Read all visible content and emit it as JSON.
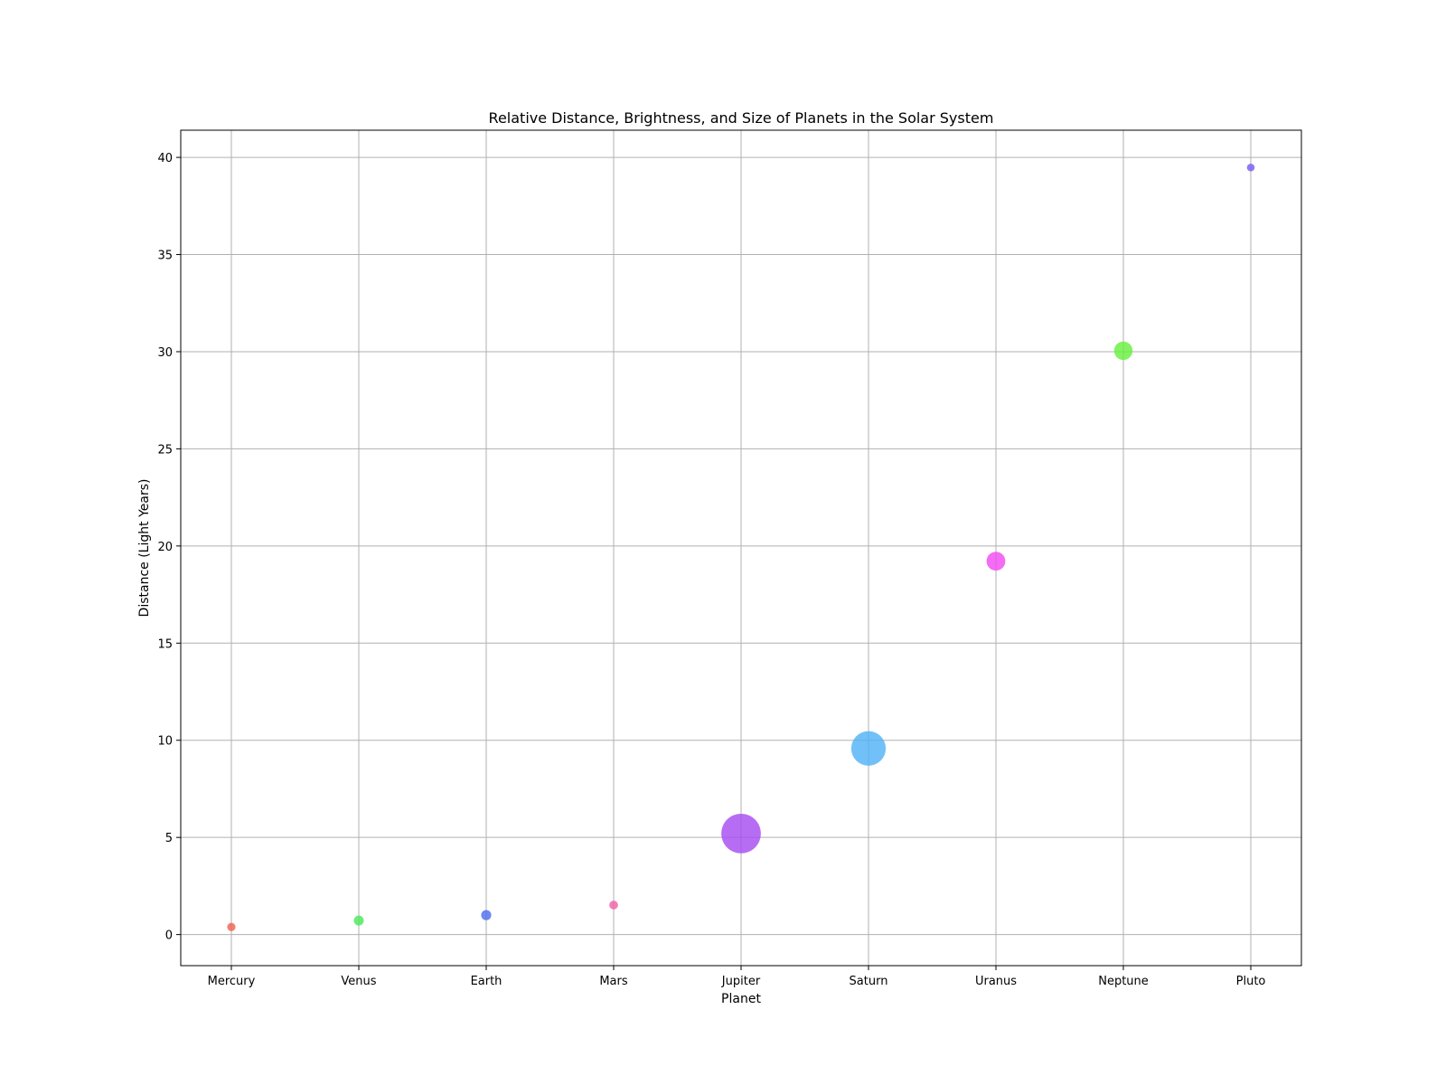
{
  "chart_data": {
    "type": "scatter",
    "title": "Relative Distance, Brightness, and Size of Planets in the Solar System",
    "xlabel": "Planet",
    "ylabel": "Distance (Light Years)",
    "categories": [
      "Mercury",
      "Venus",
      "Earth",
      "Mars",
      "Jupiter",
      "Saturn",
      "Uranus",
      "Neptune",
      "Pluto"
    ],
    "values": [
      0.39,
      0.72,
      1.0,
      1.52,
      5.2,
      9.58,
      19.22,
      30.05,
      39.48
    ],
    "relative_size": [
      0.38,
      0.95,
      1.0,
      0.53,
      11.2,
      9.45,
      4.0,
      3.88,
      0.18
    ],
    "colors": [
      "#f0634f",
      "#4ce85a",
      "#4e6ff0",
      "#f062a8",
      "#a64df0",
      "#52b3f7",
      "#f24cf2",
      "#68f040",
      "#7a5cf2"
    ],
    "y_ticks": [
      0,
      5,
      10,
      15,
      20,
      25,
      30,
      35,
      40
    ],
    "ylim": [
      -1.6,
      41.4
    ],
    "grid": true
  }
}
